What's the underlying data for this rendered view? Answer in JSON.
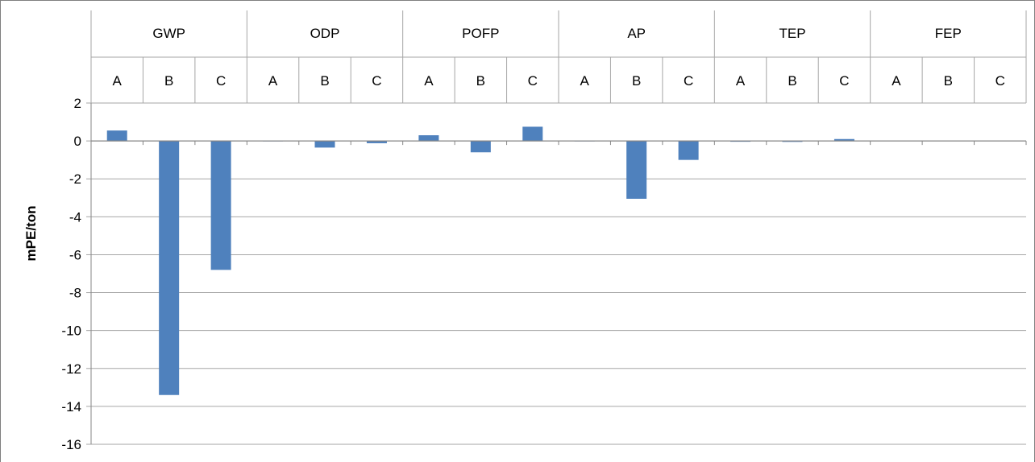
{
  "chart_data": {
    "type": "bar",
    "groups": [
      "GWP",
      "ODP",
      "POFP",
      "AP",
      "TEP",
      "FEP"
    ],
    "subcategories": [
      "A",
      "B",
      "C"
    ],
    "categories": [
      "GWP A",
      "GWP B",
      "GWP C",
      "ODP A",
      "ODP B",
      "ODP C",
      "POFP A",
      "POFP B",
      "POFP C",
      "AP A",
      "AP B",
      "AP C",
      "TEP A",
      "TEP B",
      "TEP C",
      "FEP A",
      "FEP B",
      "FEP C"
    ],
    "values": [
      0.55,
      -13.4,
      -6.8,
      0.02,
      -0.35,
      -0.12,
      0.3,
      -0.6,
      0.75,
      0.02,
      -3.05,
      -1.0,
      -0.01,
      -0.05,
      0.1,
      0.0,
      0.0,
      0.0
    ],
    "ylabel": "mPE/ton",
    "ylim": [
      -16,
      2
    ],
    "yticks": [
      2,
      0,
      -2,
      -4,
      -6,
      -8,
      -10,
      -12,
      -14,
      -16
    ],
    "grid": true,
    "bar_color": "#4f81bd",
    "grid_color": "#a6a6a6"
  }
}
